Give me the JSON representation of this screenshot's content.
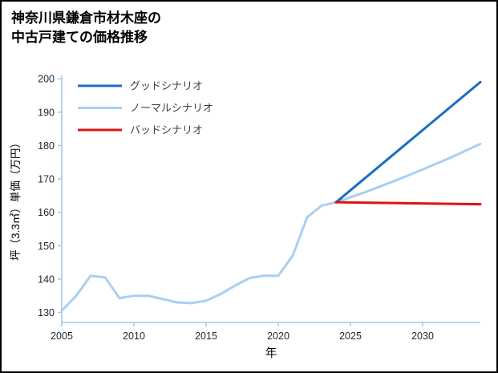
{
  "header": {
    "title_line1": "神奈川県鎌倉市材木座の",
    "title_line2": "中古戸建ての価格推移"
  },
  "chart_data": {
    "type": "line",
    "title": "神奈川県鎌倉市材木座の中古戸建ての価格推移",
    "xlabel": "年",
    "ylabel": "坪（3.3㎡）単価（万円）",
    "xlim": [
      2005,
      2034
    ],
    "ylim": [
      127,
      201
    ],
    "xticks": [
      2005,
      2010,
      2015,
      2020,
      2025,
      2030
    ],
    "yticks": [
      130,
      140,
      150,
      160,
      170,
      180,
      190,
      200
    ],
    "grid": false,
    "legend_position": "top-left",
    "colors": {
      "axis": "#a6c9ec",
      "tick_label": "#1f2430",
      "axis_label": "#000000",
      "legend_label": "#3c4043",
      "good": "#1b6ec2",
      "normal": "#a9cff2",
      "bad": "#e01212"
    },
    "series": [
      {
        "key": "good-scenario",
        "name": "グッドシナリオ",
        "color_key": "good",
        "x": [
          2024,
          2034
        ],
        "y": [
          163,
          199
        ]
      },
      {
        "key": "normal-scenario",
        "name": "ノーマルシナリオ",
        "color_key": "normal",
        "x": [
          2005,
          2006,
          2007,
          2008,
          2009,
          2010,
          2011,
          2012,
          2013,
          2014,
          2015,
          2016,
          2017,
          2018,
          2019,
          2020,
          2021,
          2022,
          2023,
          2024,
          2026,
          2028,
          2030,
          2032,
          2034
        ],
        "y": [
          130.5,
          135,
          141,
          140.5,
          134.3,
          135,
          135,
          134,
          133,
          132.8,
          133.5,
          135.5,
          138,
          140.3,
          141,
          141,
          147,
          158.5,
          162,
          163,
          166,
          169.3,
          172.8,
          176.5,
          180.5
        ]
      },
      {
        "key": "bad-scenario",
        "name": "バッドシナリオ",
        "color_key": "bad",
        "x": [
          2024,
          2034
        ],
        "y": [
          163,
          162.4
        ]
      }
    ],
    "draw_order": [
      1,
      0,
      2
    ]
  }
}
